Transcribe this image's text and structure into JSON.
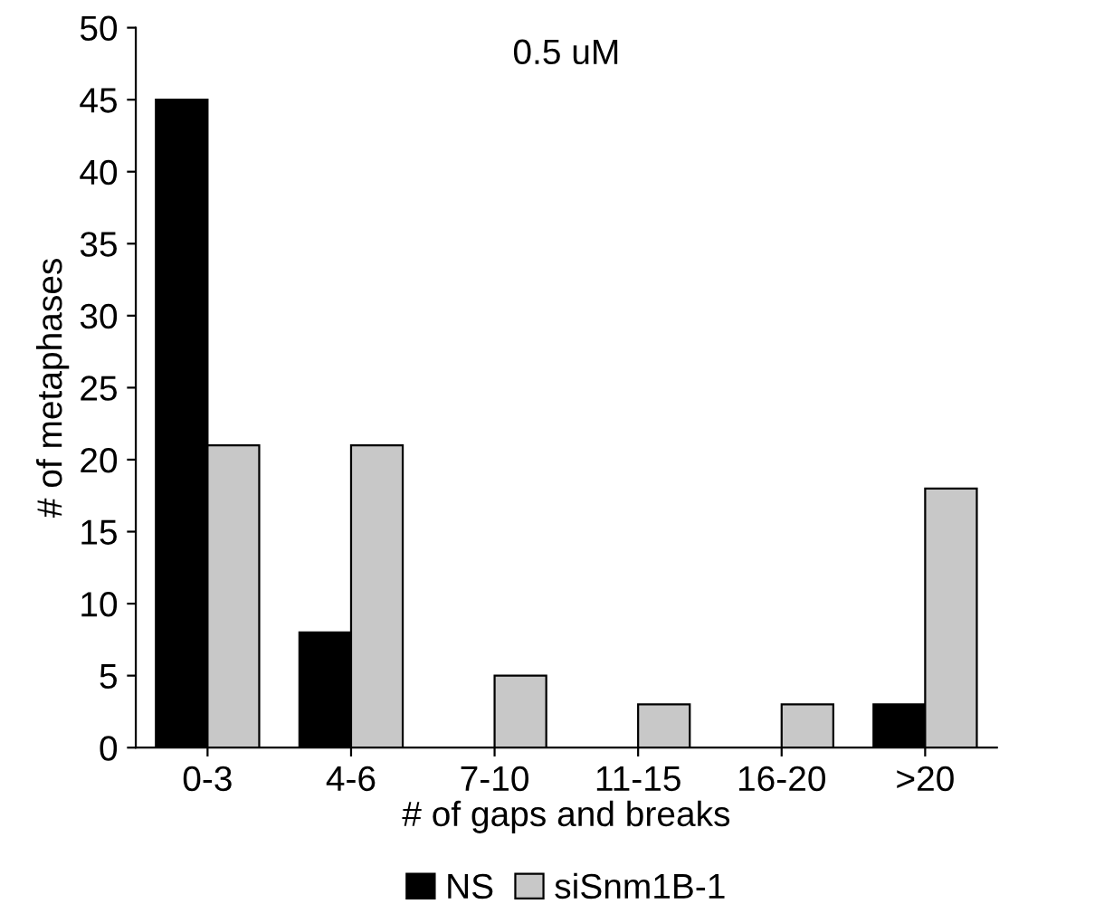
{
  "chart_data": {
    "type": "bar",
    "title": "0.5 uM",
    "xlabel": "# of gaps and breaks",
    "ylabel": "# of metaphases",
    "categories": [
      "0-3",
      "4-6",
      "7-10",
      "11-15",
      "16-20",
      ">20"
    ],
    "series": [
      {
        "name": "NS",
        "color": "#000000",
        "values": [
          45,
          8,
          0,
          0,
          0,
          3
        ]
      },
      {
        "name": "siSnm1B-1",
        "color": "#c8c8c8",
        "values": [
          21,
          21,
          5,
          3,
          3,
          18
        ]
      }
    ],
    "ylim": [
      0,
      50
    ],
    "yticks": [
      0,
      5,
      10,
      15,
      20,
      25,
      30,
      35,
      40,
      45,
      50
    ],
    "grid": false,
    "legend": "bottom"
  }
}
